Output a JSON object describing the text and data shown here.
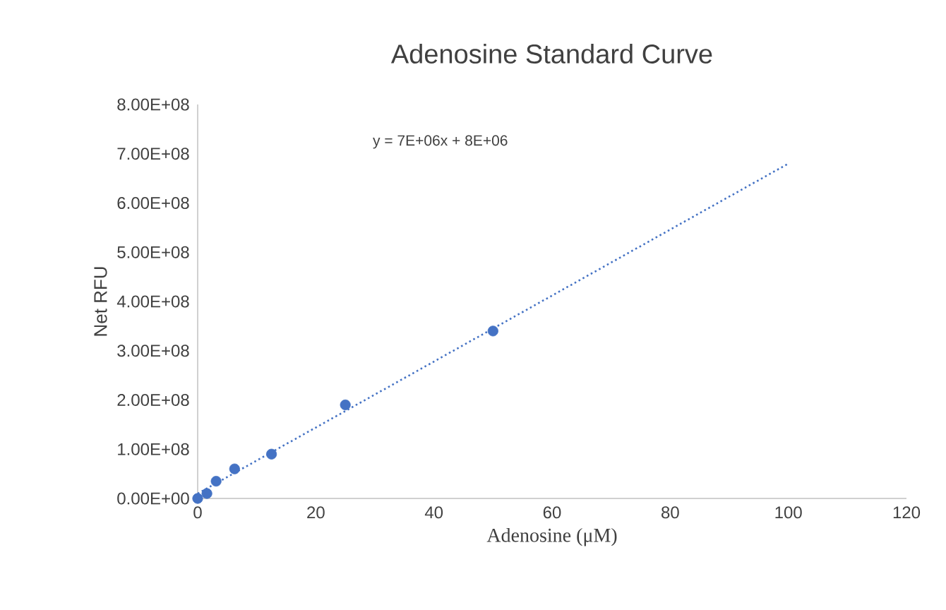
{
  "chart_data": {
    "type": "scatter",
    "title": "Adenosine Standard Curve",
    "xlabel": "Adenosine (μM)",
    "ylabel": "Net RFU",
    "xlim": [
      0,
      120
    ],
    "xticks": [
      0,
      20,
      40,
      60,
      80,
      100,
      120
    ],
    "ylim": [
      0,
      800000000
    ],
    "yticks": [
      {
        "value": 0,
        "label": "0.00E+00"
      },
      {
        "value": 100000000,
        "label": "1.00E+08"
      },
      {
        "value": 200000000,
        "label": "2.00E+08"
      },
      {
        "value": 300000000,
        "label": "3.00E+08"
      },
      {
        "value": 400000000,
        "label": "4.00E+08"
      },
      {
        "value": 500000000,
        "label": "5.00E+08"
      },
      {
        "value": 600000000,
        "label": "6.00E+08"
      },
      {
        "value": 700000000,
        "label": "7.00E+08"
      },
      {
        "value": 800000000,
        "label": "8.00E+08"
      }
    ],
    "series": [
      {
        "color": "#4472c4",
        "marker": "circle",
        "x": [
          0,
          1.5625,
          3.125,
          6.25,
          12.5,
          25,
          50
        ],
        "values": [
          0,
          10000000,
          35000000,
          60000000,
          90000000,
          190000000,
          340000000
        ]
      },
      {
        "type": "line",
        "color": "#4472c4",
        "marker": "none",
        "line_style": "dotted",
        "x": [
          0,
          100
        ],
        "values": [
          10000000,
          680000000
        ]
      }
    ],
    "annotations": [
      "y = 7E+06x + 8E+06"
    ]
  }
}
